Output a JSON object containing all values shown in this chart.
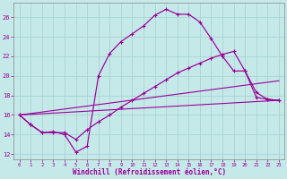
{
  "xlabel": "Windchill (Refroidissement éolien,°C)",
  "x_ticks": [
    0,
    1,
    2,
    3,
    4,
    5,
    6,
    7,
    8,
    9,
    10,
    11,
    12,
    13,
    14,
    15,
    16,
    17,
    18,
    19,
    20,
    21,
    22,
    23
  ],
  "y_ticks": [
    12,
    14,
    16,
    18,
    20,
    22,
    24,
    26
  ],
  "xlim": [
    -0.5,
    23.5
  ],
  "ylim": [
    11.5,
    27.5
  ],
  "bg_color": "#c5e8e8",
  "grid_color": "#aad4d4",
  "line_color": "#990099",
  "curve1_x": [
    0,
    1,
    2,
    3,
    4,
    5,
    6,
    7,
    8,
    9,
    10,
    11,
    12,
    13,
    14,
    15,
    16,
    17,
    18,
    19,
    20,
    21,
    22,
    23
  ],
  "curve1_y": [
    16.0,
    15.0,
    14.2,
    14.3,
    14.0,
    12.2,
    12.8,
    20.0,
    22.3,
    23.5,
    24.3,
    25.1,
    26.2,
    26.8,
    26.3,
    26.3,
    25.5,
    23.8,
    22.0,
    20.5,
    20.5,
    17.8,
    17.6,
    17.5
  ],
  "curve2_x": [
    0,
    1,
    2,
    3,
    4,
    5,
    6,
    7,
    8,
    9,
    10,
    11,
    12,
    13,
    14,
    15,
    16,
    17,
    18,
    19,
    20,
    21,
    22,
    23
  ],
  "curve2_y": [
    16.0,
    15.0,
    14.2,
    14.2,
    14.2,
    13.5,
    14.5,
    15.3,
    16.0,
    16.8,
    17.5,
    18.2,
    18.9,
    19.6,
    20.3,
    20.8,
    21.3,
    21.8,
    22.2,
    22.5,
    20.5,
    18.3,
    17.6,
    17.5
  ],
  "curve3_x": [
    0,
    23
  ],
  "curve3_y": [
    16.0,
    17.5
  ],
  "curve4_x": [
    0,
    23
  ],
  "curve4_y": [
    16.0,
    19.5
  ]
}
